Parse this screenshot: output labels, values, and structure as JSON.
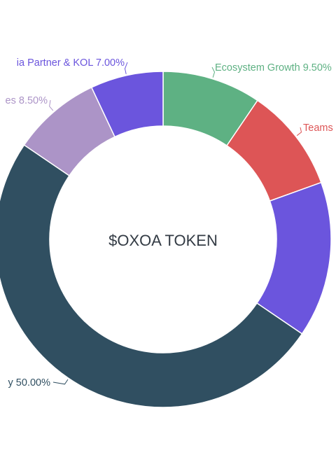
{
  "chart_data": {
    "type": "pie",
    "center_text": "$OXOA TOKEN",
    "series": [
      {
        "name": "Ecosystem Growth",
        "value": 9.5,
        "color": "#5eb183"
      },
      {
        "name": "Teams",
        "value": 10.0,
        "color": "#dd5556"
      },
      {
        "name": "",
        "value": 15.0,
        "color": "#6b55dd"
      },
      {
        "name": "",
        "value": 50.0,
        "color": "#304f61"
      },
      {
        "name": "",
        "value": 8.5,
        "color": "#ac94c7"
      },
      {
        "name": "",
        "value": 7.0,
        "color": "#6b55dd"
      }
    ],
    "labels": [
      {
        "text": "Ecosystem Growth 9.50%",
        "color": "#5eb183"
      },
      {
        "text": "Teams",
        "color": "#dd5556"
      },
      {
        "text": "y 50.00%",
        "color": "#304f61"
      },
      {
        "text": "es 8.50%",
        "color": "#ac94c7"
      },
      {
        "text": "ia Partner & KOL 7.00%",
        "color": "#6b55dd"
      }
    ]
  }
}
